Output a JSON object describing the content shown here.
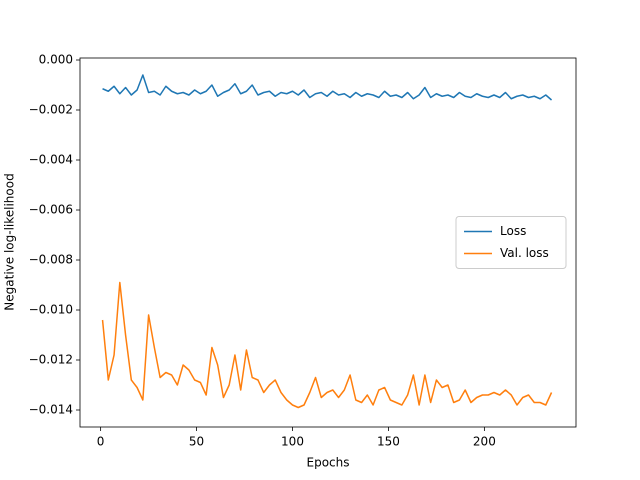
{
  "chart_data": {
    "type": "line",
    "xlabel": "Epochs",
    "ylabel": "Negative log-likelihood",
    "x": [
      1,
      4,
      7,
      10,
      13,
      16,
      19,
      22,
      25,
      28,
      31,
      34,
      37,
      40,
      43,
      46,
      49,
      52,
      55,
      58,
      61,
      64,
      67,
      70,
      73,
      76,
      79,
      82,
      85,
      88,
      91,
      94,
      97,
      100,
      103,
      106,
      109,
      112,
      115,
      118,
      121,
      124,
      127,
      130,
      133,
      136,
      139,
      142,
      145,
      148,
      151,
      154,
      157,
      160,
      163,
      166,
      169,
      172,
      175,
      178,
      181,
      184,
      187,
      190,
      193,
      196,
      199,
      202,
      205,
      208,
      211,
      214,
      217,
      220,
      223,
      226,
      229,
      232,
      235
    ],
    "series": [
      {
        "name": "Loss",
        "color": "#1f77b4",
        "values": [
          -0.00115,
          -0.00125,
          -0.00105,
          -0.00135,
          -0.0011,
          -0.0014,
          -0.0012,
          -0.0006,
          -0.0013,
          -0.00125,
          -0.0014,
          -0.00105,
          -0.00125,
          -0.00135,
          -0.0013,
          -0.0014,
          -0.0012,
          -0.00135,
          -0.00125,
          -0.001,
          -0.00145,
          -0.0013,
          -0.0012,
          -0.00095,
          -0.00135,
          -0.00125,
          -0.001,
          -0.0014,
          -0.0013,
          -0.00125,
          -0.00145,
          -0.0013,
          -0.00135,
          -0.00125,
          -0.0014,
          -0.0012,
          -0.0015,
          -0.00135,
          -0.0013,
          -0.00145,
          -0.00125,
          -0.0014,
          -0.00135,
          -0.0015,
          -0.0013,
          -0.00145,
          -0.00135,
          -0.0014,
          -0.0015,
          -0.00125,
          -0.00145,
          -0.0014,
          -0.0015,
          -0.0013,
          -0.00155,
          -0.0014,
          -0.0011,
          -0.0015,
          -0.00135,
          -0.00145,
          -0.0014,
          -0.0015,
          -0.0013,
          -0.00145,
          -0.0015,
          -0.00135,
          -0.00145,
          -0.0015,
          -0.0014,
          -0.0015,
          -0.0013,
          -0.00155,
          -0.00145,
          -0.0014,
          -0.0015,
          -0.00145,
          -0.00155,
          -0.0014,
          -0.0016
        ]
      },
      {
        "name": "Val. loss",
        "color": "#ff7f0e",
        "values": [
          -0.0104,
          -0.0128,
          -0.0118,
          -0.0089,
          -0.011,
          -0.0128,
          -0.0131,
          -0.0136,
          -0.0102,
          -0.0115,
          -0.0127,
          -0.0125,
          -0.0126,
          -0.013,
          -0.0122,
          -0.0124,
          -0.0128,
          -0.0129,
          -0.0134,
          -0.0115,
          -0.0122,
          -0.0135,
          -0.013,
          -0.0118,
          -0.0132,
          -0.0116,
          -0.0127,
          -0.0128,
          -0.0133,
          -0.013,
          -0.0128,
          -0.0133,
          -0.0136,
          -0.0138,
          -0.0139,
          -0.0138,
          -0.0133,
          -0.0127,
          -0.0135,
          -0.0133,
          -0.0132,
          -0.0135,
          -0.0132,
          -0.0126,
          -0.0136,
          -0.0137,
          -0.0134,
          -0.0138,
          -0.0132,
          -0.0131,
          -0.0136,
          -0.0137,
          -0.0138,
          -0.0134,
          -0.0126,
          -0.0138,
          -0.0126,
          -0.0137,
          -0.0128,
          -0.0131,
          -0.013,
          -0.0137,
          -0.0136,
          -0.0132,
          -0.0137,
          -0.0135,
          -0.0134,
          -0.0134,
          -0.0133,
          -0.0134,
          -0.0132,
          -0.0134,
          -0.0138,
          -0.0135,
          -0.0134,
          -0.0137,
          -0.0137,
          -0.0138,
          -0.0133
        ]
      }
    ],
    "xlim": [
      -10.75,
      247.75
    ],
    "xticks": [
      0,
      50,
      100,
      150,
      200
    ],
    "ylim": [
      -0.01468,
      8e-05
    ],
    "yticks": [
      {
        "value": 0,
        "label": "0.000"
      },
      {
        "value": -0.002,
        "label": "−0.002"
      },
      {
        "value": -0.004,
        "label": "−0.004"
      },
      {
        "value": -0.006,
        "label": "−0.006"
      },
      {
        "value": -0.008,
        "label": "−0.008"
      },
      {
        "value": -0.01,
        "label": "−0.010"
      },
      {
        "value": -0.012,
        "label": "−0.012"
      },
      {
        "value": -0.014,
        "label": "−0.014"
      }
    ],
    "legend": "center right"
  }
}
